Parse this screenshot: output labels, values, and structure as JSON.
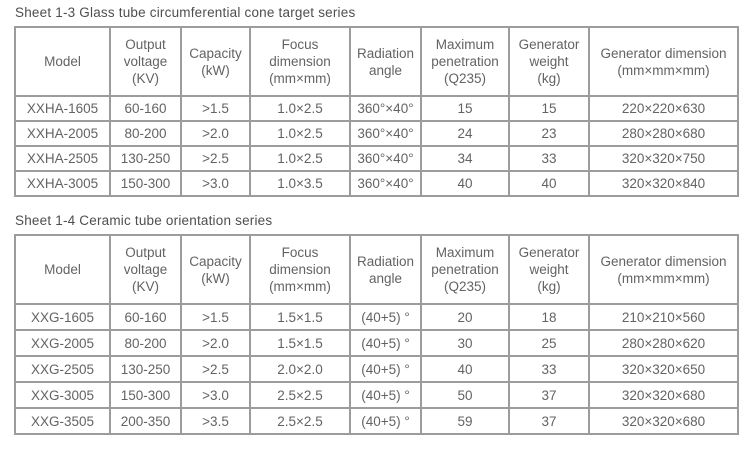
{
  "tables": [
    {
      "title": "Sheet 1-3 Glass tube circumferential cone target series",
      "headers": [
        "Model",
        "Output\nvoltage\n(KV)",
        "Capacity\n(kW)",
        "Focus\ndimension\n(mm×mm)",
        "Radiation\nangle",
        "Maximum\npenetration\n(Q235)",
        "Generator\nweight\n(kg)",
        "Generator dimension\n(mm×mm×mm)"
      ],
      "rows": [
        [
          "XXHA-1605",
          "60-160",
          ">1.5",
          "1.0×2.5",
          "360°×40°",
          "15",
          "15",
          "220×220×630"
        ],
        [
          "XXHA-2005",
          "80-200",
          ">2.0",
          "1.0×2.5",
          "360°×40°",
          "24",
          "23",
          "280×280×680"
        ],
        [
          "XXHA-2505",
          "130-250",
          ">2.5",
          "1.0×2.5",
          "360°×40°",
          "34",
          "33",
          "320×320×750"
        ],
        [
          "XXHA-3005",
          "150-300",
          ">3.0",
          "1.0×3.5",
          "360°×40°",
          "40",
          "40",
          "320×320×840"
        ]
      ]
    },
    {
      "title": "Sheet 1-4 Ceramic tube orientation series",
      "headers": [
        "Model",
        "Output\nvoltage\n(KV)",
        "Capacity\n(kW)",
        "Focus\ndimension\n(mm×mm)",
        "Radiation\nangle",
        "Maximum\npenetration\n(Q235)",
        "Generator\nweight\n(kg)",
        "Generator dimension\n(mm×mm×mm)"
      ],
      "rows": [
        [
          "XXG-1605",
          "60-160",
          ">1.5",
          "1.5×1.5",
          "(40+5) °",
          "20",
          "18",
          "210×210×560"
        ],
        [
          "XXG-2005",
          "80-200",
          ">2.0",
          "1.5×1.5",
          "(40+5) °",
          "30",
          "25",
          "280×280×620"
        ],
        [
          "XXG-2505",
          "130-250",
          ">2.5",
          "2.0×2.0",
          "(40+5) °",
          "40",
          "33",
          "320×320×650"
        ],
        [
          "XXG-3005",
          "150-300",
          ">3.0",
          "2.5×2.5",
          "(40+5) °",
          "50",
          "37",
          "320×320×680"
        ],
        [
          "XXG-3505",
          "200-350",
          ">3.5",
          "2.5×2.5",
          "(40+5) °",
          "59",
          "37",
          "320×320×680"
        ]
      ]
    }
  ],
  "colors": {
    "border": "#9c9c9c",
    "cell_text": "#636363",
    "title_text": "#4e4e4e",
    "background": "#ffffff"
  }
}
